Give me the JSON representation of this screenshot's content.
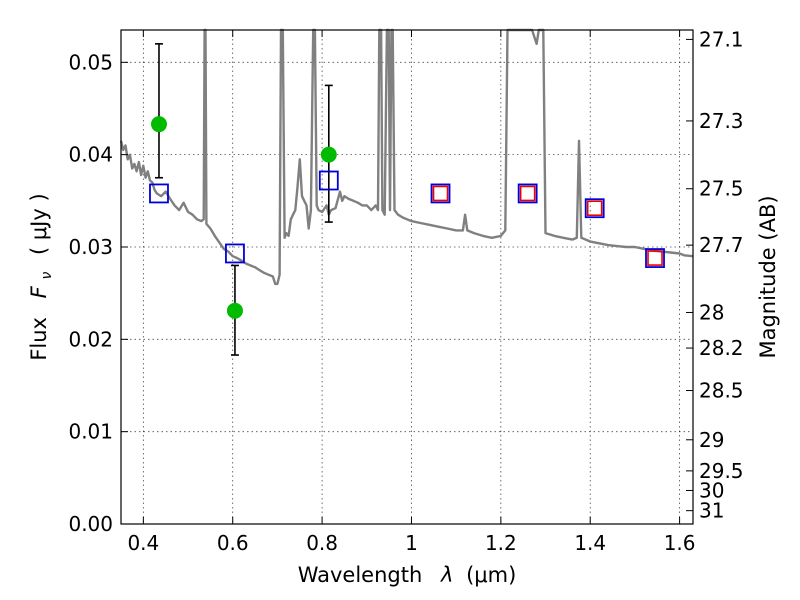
{
  "chart_data": {
    "type": "scatter",
    "xlabel_main": "Wavelength",
    "xlabel_symbol": "λ",
    "xlabel_unit": "(μm)",
    "ylabel_main": "Flux",
    "ylabel_symbol": "F",
    "ylabel_subscript": "ν",
    "ylabel_unit": "( μJy )",
    "y2label": "Magnitude (AB)",
    "xlim": [
      0.35,
      1.63
    ],
    "ylim": [
      0.0,
      0.0535
    ],
    "x_ticks": [
      0.4,
      0.6,
      0.8,
      1.0,
      1.2,
      1.4,
      1.6
    ],
    "x_tick_labels": [
      "0.4",
      "0.6",
      "0.8",
      "1",
      "1.2",
      "1.4",
      "1.6"
    ],
    "y_ticks": [
      0.0,
      0.01,
      0.02,
      0.03,
      0.04,
      0.05
    ],
    "y_tick_labels": [
      "0.00",
      "0.01",
      "0.02",
      "0.03",
      "0.04",
      "0.05"
    ],
    "mag_ticks": [
      27.1,
      27.3,
      27.5,
      27.7,
      28,
      28.2,
      28.5,
      29,
      29.5,
      30,
      31
    ],
    "mag_tick_labels": [
      "27.1",
      "27.3",
      "27.5",
      "27.7",
      "28",
      "28.2",
      "28.5",
      "29",
      "29.5",
      "30",
      "31"
    ],
    "grid": true,
    "colors": {
      "spectrum": "#808080",
      "observed": "#00bb00",
      "model_box": "#0000dd",
      "model_inner": "#ee0000",
      "errorbar": "#000000"
    },
    "spectrum": [
      [
        0.35,
        0.0415
      ],
      [
        0.355,
        0.0405
      ],
      [
        0.36,
        0.041
      ],
      [
        0.365,
        0.0395
      ],
      [
        0.37,
        0.04
      ],
      [
        0.375,
        0.0385
      ],
      [
        0.38,
        0.039
      ],
      [
        0.385,
        0.0382
      ],
      [
        0.39,
        0.0392
      ],
      [
        0.395,
        0.0378
      ],
      [
        0.4,
        0.0388
      ],
      [
        0.405,
        0.0375
      ],
      [
        0.41,
        0.0382
      ],
      [
        0.415,
        0.0372
      ],
      [
        0.42,
        0.037
      ],
      [
        0.425,
        0.0362
      ],
      [
        0.43,
        0.0358
      ],
      [
        0.44,
        0.0355
      ],
      [
        0.45,
        0.036
      ],
      [
        0.46,
        0.0352
      ],
      [
        0.47,
        0.0345
      ],
      [
        0.48,
        0.034
      ],
      [
        0.49,
        0.0348
      ],
      [
        0.5,
        0.0338
      ],
      [
        0.51,
        0.0335
      ],
      [
        0.52,
        0.033
      ],
      [
        0.53,
        0.0328
      ],
      [
        0.535,
        0.033
      ],
      [
        0.537,
        0.0538
      ],
      [
        0.539,
        0.0538
      ],
      [
        0.541,
        0.0325
      ],
      [
        0.55,
        0.032
      ],
      [
        0.56,
        0.0312
      ],
      [
        0.57,
        0.0305
      ],
      [
        0.58,
        0.0298
      ],
      [
        0.59,
        0.0295
      ],
      [
        0.6,
        0.029
      ],
      [
        0.61,
        0.0288
      ],
      [
        0.62,
        0.0285
      ],
      [
        0.63,
        0.0282
      ],
      [
        0.64,
        0.028
      ],
      [
        0.65,
        0.0278
      ],
      [
        0.66,
        0.0275
      ],
      [
        0.67,
        0.0272
      ],
      [
        0.68,
        0.027
      ],
      [
        0.69,
        0.0268
      ],
      [
        0.695,
        0.026
      ],
      [
        0.7,
        0.026
      ],
      [
        0.705,
        0.027
      ],
      [
        0.708,
        0.0538
      ],
      [
        0.712,
        0.0538
      ],
      [
        0.716,
        0.031
      ],
      [
        0.72,
        0.0315
      ],
      [
        0.725,
        0.0312
      ],
      [
        0.73,
        0.033
      ],
      [
        0.735,
        0.0335
      ],
      [
        0.74,
        0.034
      ],
      [
        0.745,
        0.0365
      ],
      [
        0.75,
        0.0395
      ],
      [
        0.755,
        0.0355
      ],
      [
        0.76,
        0.035
      ],
      [
        0.765,
        0.0345
      ],
      [
        0.77,
        0.032
      ],
      [
        0.775,
        0.034
      ],
      [
        0.78,
        0.0538
      ],
      [
        0.784,
        0.0538
      ],
      [
        0.788,
        0.0345
      ],
      [
        0.792,
        0.034
      ],
      [
        0.8,
        0.0338
      ],
      [
        0.81,
        0.0345
      ],
      [
        0.815,
        0.0335
      ],
      [
        0.82,
        0.034
      ],
      [
        0.83,
        0.0342
      ],
      [
        0.84,
        0.036
      ],
      [
        0.845,
        0.035
      ],
      [
        0.85,
        0.0355
      ],
      [
        0.86,
        0.0352
      ],
      [
        0.87,
        0.035
      ],
      [
        0.88,
        0.0348
      ],
      [
        0.89,
        0.0345
      ],
      [
        0.9,
        0.0345
      ],
      [
        0.91,
        0.034
      ],
      [
        0.92,
        0.0345
      ],
      [
        0.925,
        0.034
      ],
      [
        0.928,
        0.0538
      ],
      [
        0.932,
        0.0538
      ],
      [
        0.935,
        0.034
      ],
      [
        0.94,
        0.0335
      ],
      [
        0.945,
        0.0538
      ],
      [
        0.949,
        0.0538
      ],
      [
        0.952,
        0.034
      ],
      [
        0.955,
        0.0538
      ],
      [
        0.958,
        0.0538
      ],
      [
        0.962,
        0.034
      ],
      [
        0.97,
        0.0335
      ],
      [
        0.98,
        0.0332
      ],
      [
        0.99,
        0.033
      ],
      [
        1.0,
        0.0328
      ],
      [
        1.02,
        0.0326
      ],
      [
        1.04,
        0.0324
      ],
      [
        1.06,
        0.0322
      ],
      [
        1.08,
        0.032
      ],
      [
        1.1,
        0.0318
      ],
      [
        1.115,
        0.0318
      ],
      [
        1.12,
        0.0335
      ],
      [
        1.125,
        0.0318
      ],
      [
        1.14,
        0.0315
      ],
      [
        1.16,
        0.0312
      ],
      [
        1.18,
        0.031
      ],
      [
        1.2,
        0.0312
      ],
      [
        1.21,
        0.0318
      ],
      [
        1.215,
        0.0538
      ],
      [
        1.22,
        0.0538
      ],
      [
        1.23,
        0.0538
      ],
      [
        1.24,
        0.0538
      ],
      [
        1.25,
        0.0538
      ],
      [
        1.26,
        0.0538
      ],
      [
        1.27,
        0.0538
      ],
      [
        1.28,
        0.052
      ],
      [
        1.285,
        0.0538
      ],
      [
        1.295,
        0.0538
      ],
      [
        1.3,
        0.0315
      ],
      [
        1.32,
        0.0312
      ],
      [
        1.34,
        0.031
      ],
      [
        1.36,
        0.0308
      ],
      [
        1.37,
        0.031
      ],
      [
        1.375,
        0.0415
      ],
      [
        1.38,
        0.031
      ],
      [
        1.39,
        0.0308
      ],
      [
        1.4,
        0.0306
      ],
      [
        1.41,
        0.0305
      ],
      [
        1.42,
        0.0304
      ],
      [
        1.44,
        0.0302
      ],
      [
        1.46,
        0.0301
      ],
      [
        1.48,
        0.03
      ],
      [
        1.5,
        0.03
      ],
      [
        1.52,
        0.0298
      ],
      [
        1.54,
        0.0296
      ],
      [
        1.56,
        0.0295
      ],
      [
        1.58,
        0.0294
      ],
      [
        1.6,
        0.0293
      ],
      [
        1.61,
        0.0291
      ],
      [
        1.63,
        0.029
      ]
    ],
    "observed_points": [
      {
        "x": 0.435,
        "y": 0.0433,
        "err_low": 0.0375,
        "err_high": 0.052
      },
      {
        "x": 0.605,
        "y": 0.0231,
        "err_low": 0.0183,
        "err_high": 0.028
      },
      {
        "x": 0.815,
        "y": 0.04,
        "err_low": 0.0327,
        "err_high": 0.0475
      }
    ],
    "model_points": [
      {
        "x": 0.435,
        "y": 0.0358,
        "inner": false
      },
      {
        "x": 0.605,
        "y": 0.0293,
        "inner": false
      },
      {
        "x": 0.815,
        "y": 0.0372,
        "inner": false
      },
      {
        "x": 1.065,
        "y": 0.0358,
        "inner": true
      },
      {
        "x": 1.26,
        "y": 0.0358,
        "inner": true
      },
      {
        "x": 1.41,
        "y": 0.0342,
        "inner": true
      },
      {
        "x": 1.545,
        "y": 0.0288,
        "inner": true
      }
    ]
  }
}
